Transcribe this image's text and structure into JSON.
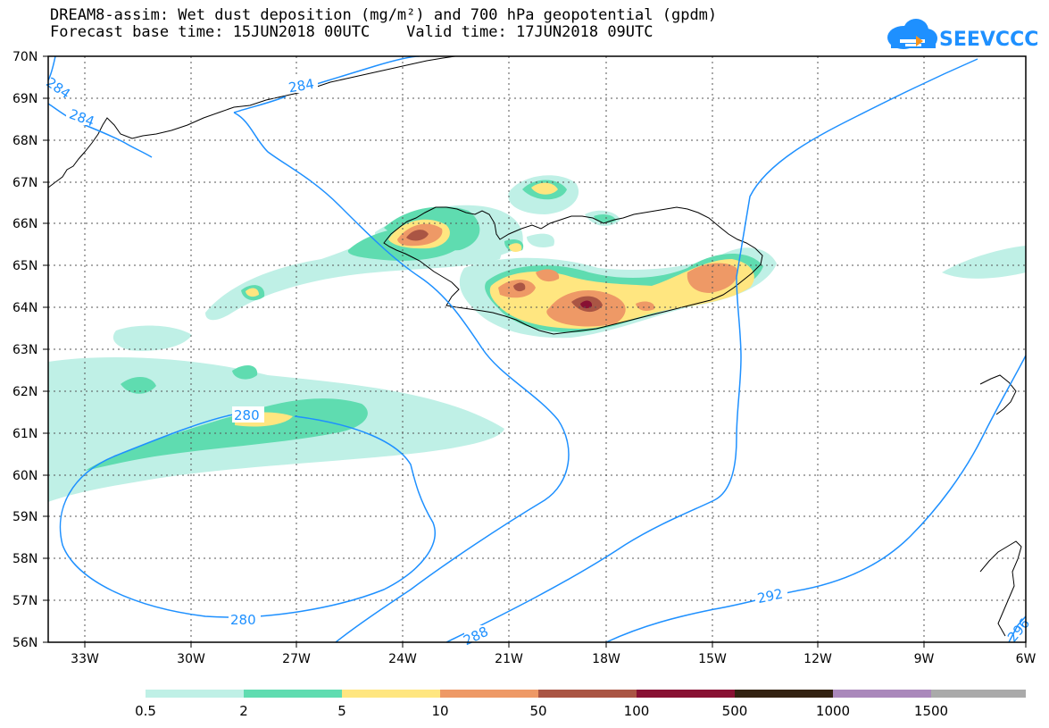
{
  "header": {
    "title_line1": "DREAM8-assim: Wet dust deposition (mg/m²) and 700 hPa geopotential (gpdm)",
    "title_line2": "Forecast base time: 15JUN2018 00UTC    Valid time: 17JUN2018 09UTC"
  },
  "logo": {
    "text": "SEEVCCC",
    "color": "#1e90ff",
    "accent": "#f7941d"
  },
  "map": {
    "lat_labels": [
      "70N",
      "69N",
      "68N",
      "67N",
      "66N",
      "65N",
      "64N",
      "63N",
      "62N",
      "61N",
      "60N",
      "59N",
      "58N",
      "57N",
      "56N"
    ],
    "lon_labels": [
      "33W",
      "30W",
      "27W",
      "24W",
      "21W",
      "18W",
      "15W",
      "12W",
      "9W",
      "6W"
    ],
    "lat_range": [
      56,
      70
    ],
    "lon_range": [
      -34.5,
      -6
    ],
    "contour_color": "#1e90ff",
    "contour_labels": [
      "284",
      "284",
      "284",
      "280",
      "280",
      "288",
      "292",
      "296"
    ]
  },
  "legend": {
    "labels": [
      "0.5",
      "2",
      "5",
      "10",
      "50",
      "100",
      "500",
      "1000",
      "1500"
    ],
    "colors": [
      "#bff0e6",
      "#5fdcb0",
      "#ffe680",
      "#ee9966",
      "#aa5544",
      "#881133",
      "#332211",
      "#aa88bb",
      "#aaaaaa"
    ]
  },
  "colors": {
    "c1": "#bff0e6",
    "c2": "#5fdcb0",
    "c3": "#ffe680",
    "c4": "#ee9966",
    "c5": "#aa5544",
    "c6": "#881133"
  }
}
